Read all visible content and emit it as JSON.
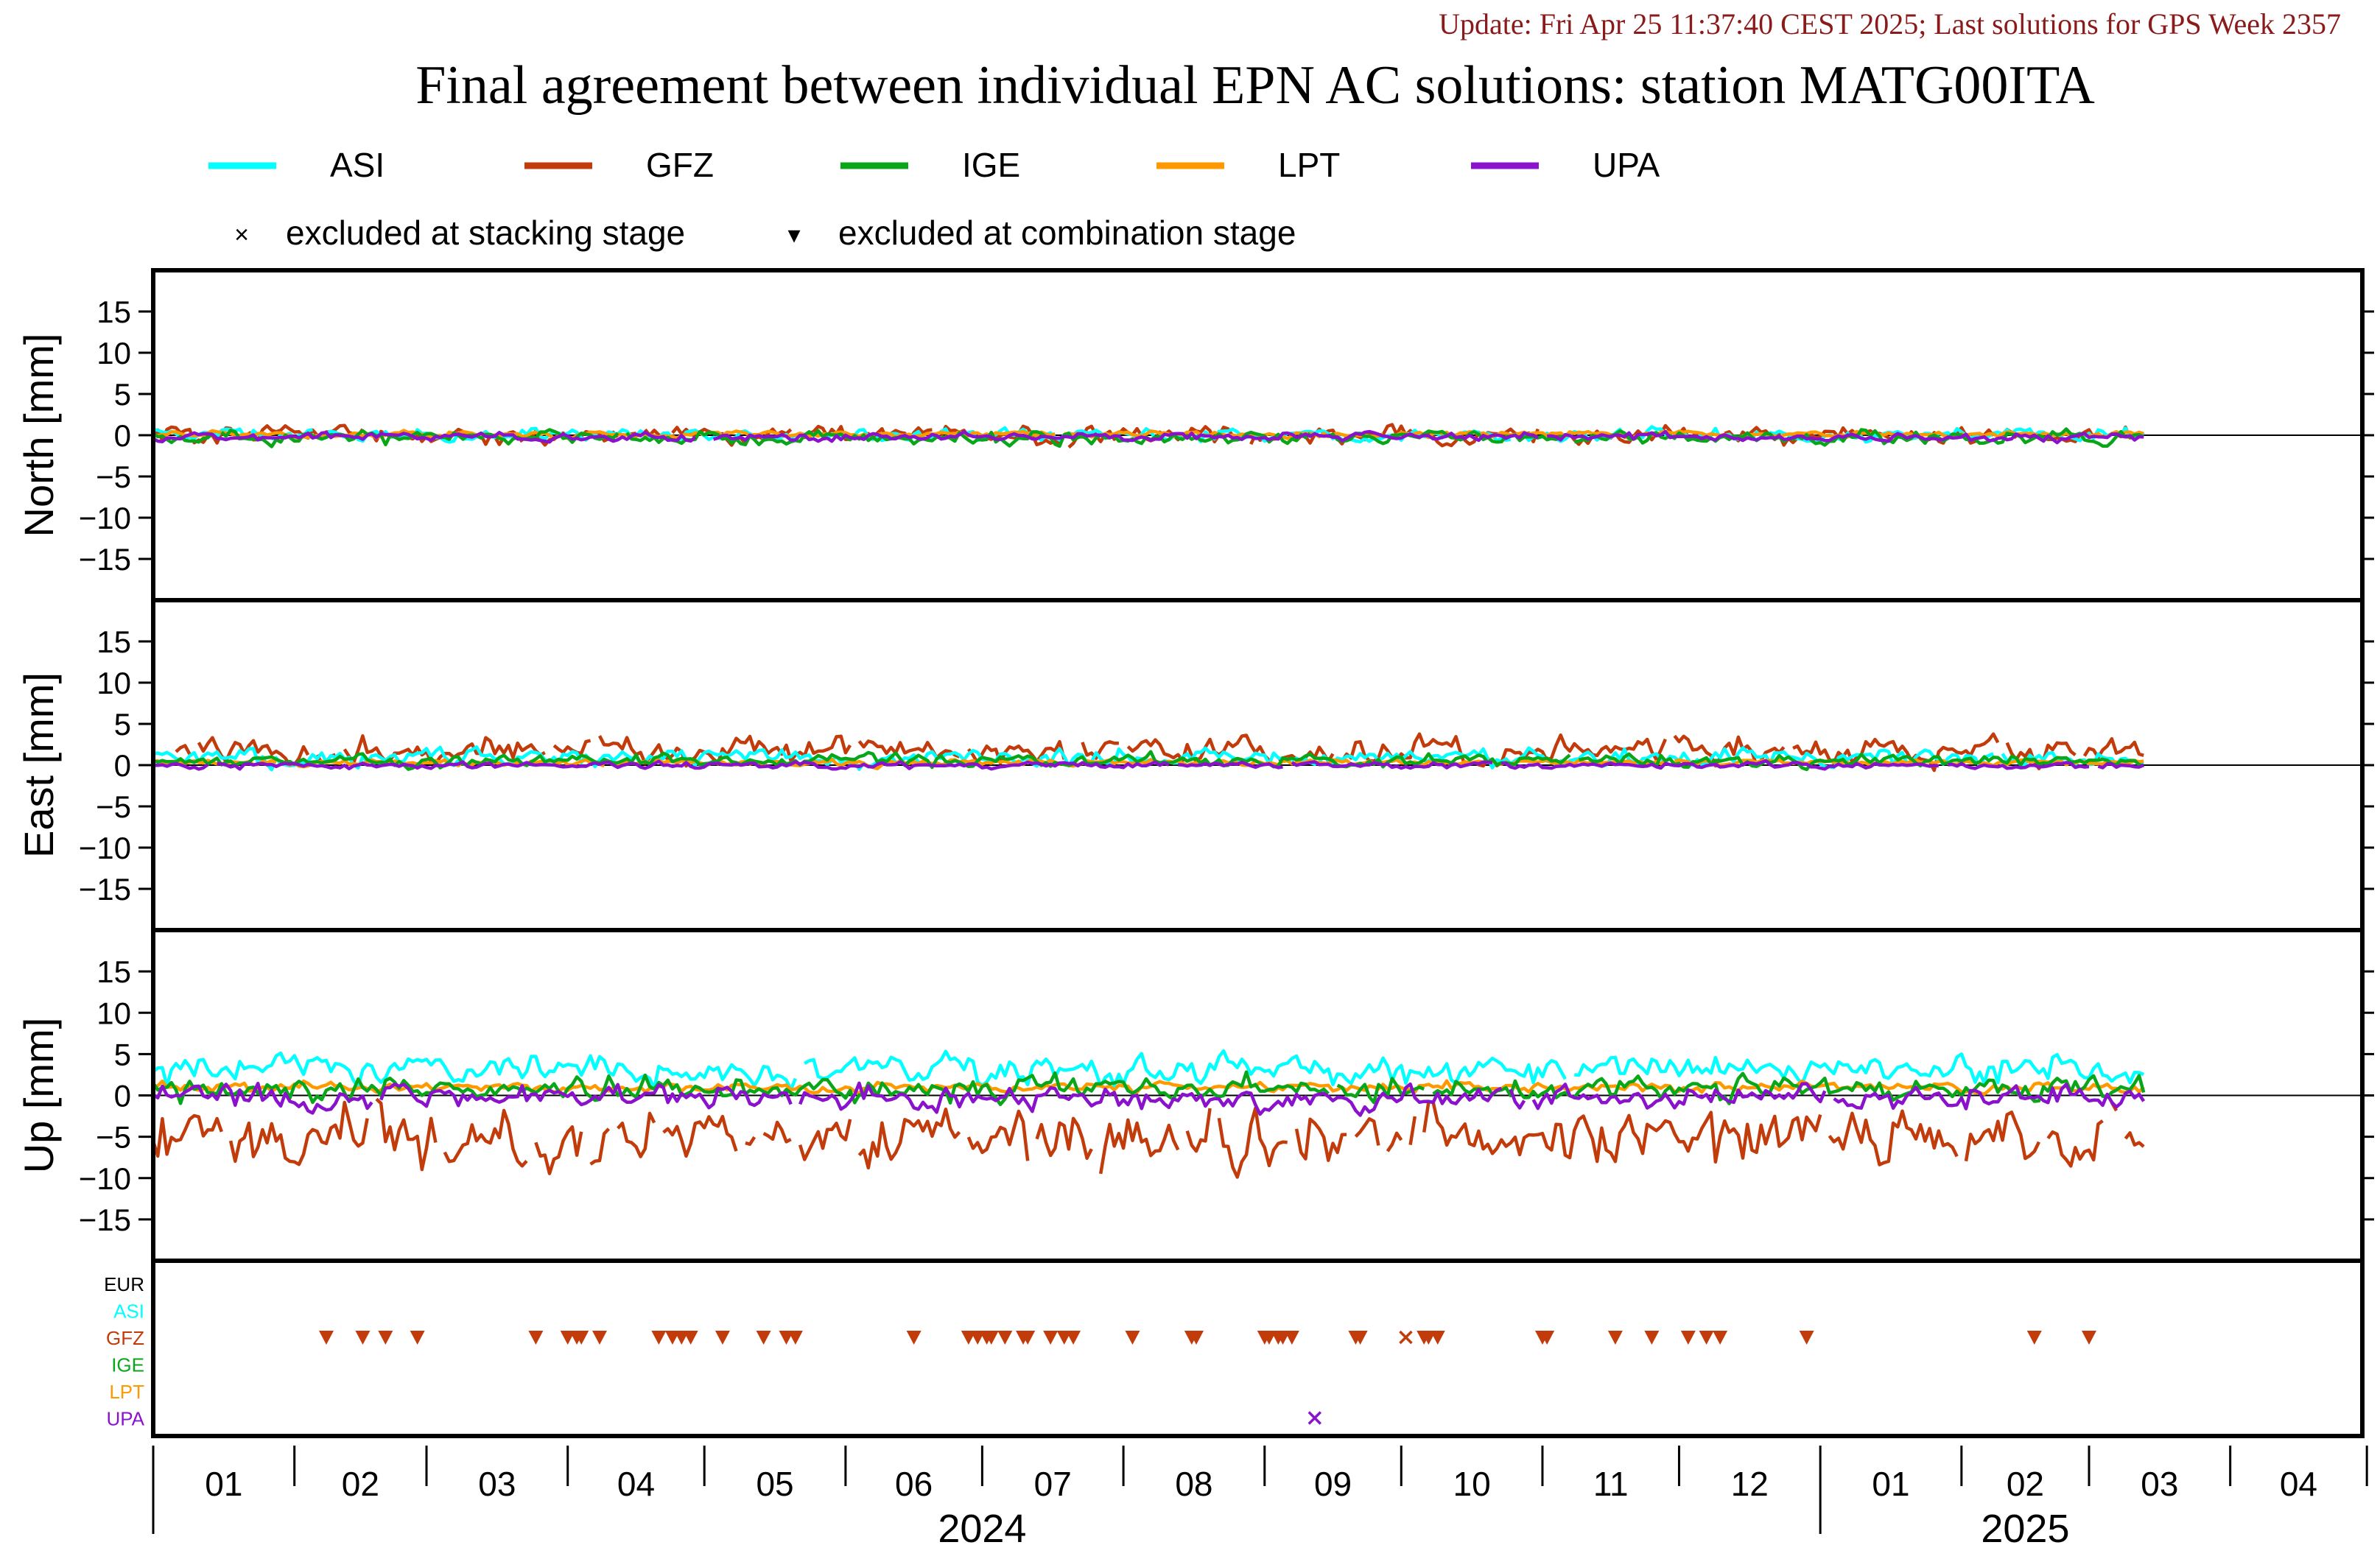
{
  "header": {
    "update_text": "Update: Fri Apr 25 11:37:40 CEST 2025; Last solutions for GPS Week 2357",
    "update_color": "#8b1a1a"
  },
  "chart_data": {
    "type": "line",
    "title": "Final agreement between individual EPN AC solutions: station MATG00ITA",
    "legend": {
      "placement": "top",
      "series": [
        {
          "name": "ASI",
          "color": "#00ffff"
        },
        {
          "name": "GFZ",
          "color": "#c23b0b"
        },
        {
          "name": "IGE",
          "color": "#0aa61a"
        },
        {
          "name": "LPT",
          "color": "#ff9900"
        },
        {
          "name": "UPA",
          "color": "#8a12cc"
        }
      ],
      "markers": [
        {
          "symbol": "×",
          "label": "excluded at stacking stage"
        },
        {
          "symbol": "▾",
          "label": "excluded at combination stage"
        }
      ]
    },
    "x_axis": {
      "range": [
        "2024-01-01",
        "2025-04-30"
      ],
      "month_ticks": [
        "01",
        "02",
        "03",
        "04",
        "05",
        "06",
        "07",
        "08",
        "09",
        "10",
        "11",
        "12",
        "01",
        "02",
        "03",
        "04"
      ],
      "year_labels": [
        {
          "label": "2024",
          "at": "2024-07-01"
        },
        {
          "label": "2025",
          "at": "2025-02-15"
        }
      ],
      "data_start": "2024-01-01",
      "data_end": "2025-03-13"
    },
    "panels": [
      {
        "ylabel": "North [mm]",
        "ylim": [
          -20,
          20
        ],
        "yticks": [
          15,
          10,
          5,
          0,
          -5,
          -10,
          -15
        ],
        "series_levels": {
          "ASI": 0.0,
          "GFZ": 0.0,
          "IGE": -0.3,
          "LPT": 0.1,
          "UPA": -0.2
        },
        "series_spread": {
          "ASI": 0.6,
          "GFZ": 0.9,
          "IGE": 0.7,
          "LPT": 0.3,
          "UPA": 0.4
        }
      },
      {
        "ylabel": "East [mm]",
        "ylim": [
          -20,
          20
        ],
        "yticks": [
          15,
          10,
          5,
          0,
          -5,
          -10,
          -15
        ],
        "series_levels": {
          "ASI": 0.9,
          "GFZ": 1.8,
          "IGE": 0.5,
          "LPT": 0.3,
          "UPA": 0.0
        },
        "series_spread": {
          "ASI": 0.9,
          "GFZ": 1.3,
          "IGE": 0.6,
          "LPT": 0.3,
          "UPA": 0.3
        }
      },
      {
        "ylabel": "Up [mm]",
        "ylim": [
          -20,
          20
        ],
        "yticks": [
          15,
          10,
          5,
          0,
          -5,
          -10,
          -15
        ],
        "series_levels": {
          "ASI": 3.0,
          "GFZ": -5.5,
          "IGE": 0.8,
          "LPT": 1.0,
          "UPA": -0.3
        },
        "series_spread": {
          "ASI": 1.4,
          "GFZ": 3.0,
          "IGE": 1.2,
          "LPT": 0.5,
          "UPA": 1.1
        }
      }
    ],
    "exclusion_panel": {
      "rows": [
        {
          "name": "EUR",
          "color": "#000000"
        },
        {
          "name": "ASI",
          "color": "#00ffff"
        },
        {
          "name": "GFZ",
          "color": "#c23b0b"
        },
        {
          "name": "IGE",
          "color": "#0aa61a"
        },
        {
          "name": "LPT",
          "color": "#ff9900"
        },
        {
          "name": "UPA",
          "color": "#8a12cc"
        }
      ],
      "combination_excluded": {
        "GFZ": [
          "2024-02-08",
          "2024-02-16",
          "2024-02-21",
          "2024-02-28",
          "2024-03-25",
          "2024-04-01",
          "2024-04-03",
          "2024-04-04",
          "2024-04-08",
          "2024-04-21",
          "2024-04-24",
          "2024-04-26",
          "2024-04-28",
          "2024-05-05",
          "2024-05-14",
          "2024-05-19",
          "2024-05-21",
          "2024-06-16",
          "2024-06-28",
          "2024-06-30",
          "2024-07-02",
          "2024-07-03",
          "2024-07-06",
          "2024-07-10",
          "2024-07-11",
          "2024-07-16",
          "2024-07-19",
          "2024-07-21",
          "2024-08-03",
          "2024-08-16",
          "2024-08-17",
          "2024-09-01",
          "2024-09-02",
          "2024-09-04",
          "2024-09-05",
          "2024-09-07",
          "2024-09-21",
          "2024-09-22",
          "2024-10-06",
          "2024-10-07",
          "2024-10-09",
          "2024-11-01",
          "2024-11-02",
          "2024-11-17",
          "2024-11-25",
          "2024-12-03",
          "2024-12-07",
          "2024-12-10",
          "2024-12-29",
          "2025-02-17",
          "2025-03-01"
        ]
      },
      "stacking_excluded": {
        "GFZ": [
          "2024-10-02"
        ],
        "UPA": [
          "2024-09-12"
        ]
      }
    }
  }
}
